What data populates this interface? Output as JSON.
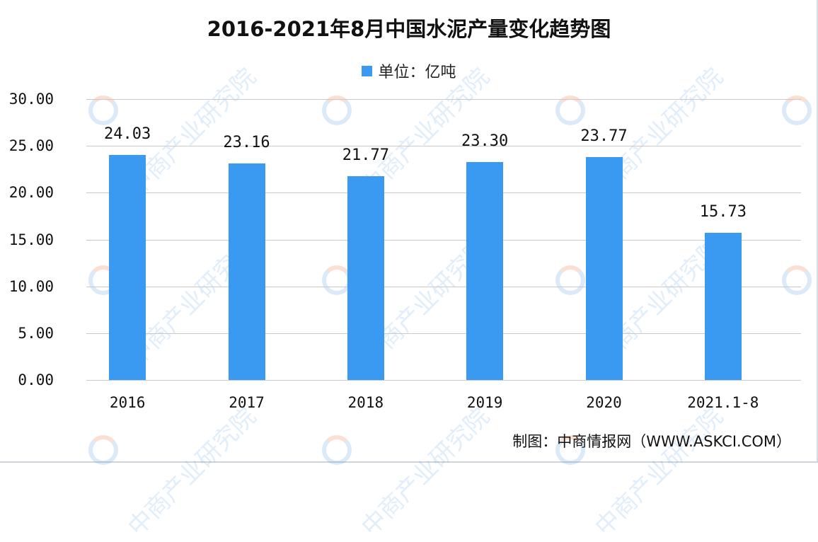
{
  "chart_data": {
    "type": "bar",
    "title": "2016-2021年8月中国水泥产量变化趋势图",
    "legend": [
      "单位：亿吨"
    ],
    "legend_position": "top",
    "categories": [
      "2016",
      "2017",
      "2018",
      "2019",
      "2020",
      "2021.1-8"
    ],
    "series": [
      {
        "name": "单位：亿吨",
        "color": "#3a99f0",
        "values": [
          24.03,
          23.16,
          21.77,
          23.3,
          23.77,
          15.73
        ]
      }
    ],
    "value_labels": [
      "24.03",
      "23.16",
      "21.77",
      "23.30",
      "23.77",
      "15.73"
    ],
    "xlabel": "",
    "ylabel": "",
    "ylim": [
      0,
      30
    ],
    "yticks": [
      "0.00",
      "5.00",
      "10.00",
      "15.00",
      "20.00",
      "25.00",
      "30.00"
    ],
    "grid": true
  },
  "source_text": "制图：中商情报网（WWW.ASKCI.COM）",
  "watermark": "中商产业研究院"
}
